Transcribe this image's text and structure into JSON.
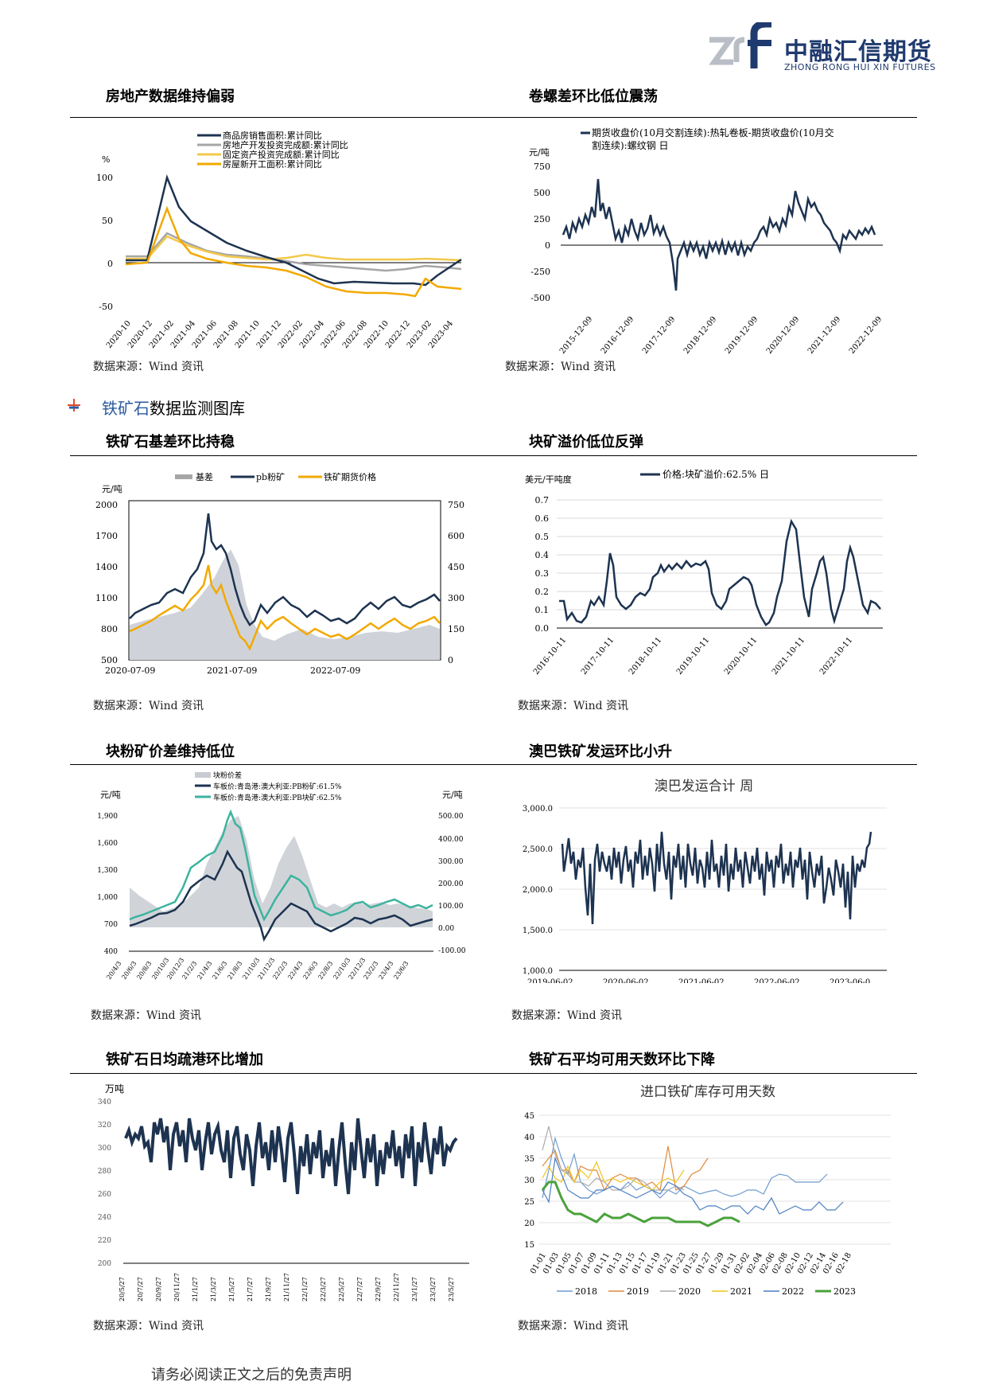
{
  "header": {
    "logo_cn": "中融汇信期货",
    "logo_en": "ZHONG RONG HUI XIN FUTURES"
  },
  "section_title_blue": "铁矿石",
  "section_title_rest": "数据监测图库",
  "source_text": "数据来源：Wind 资讯",
  "footer": "请务必阅读正文之后的免责声明",
  "colors": {
    "navy": "#1d3350",
    "gray": "#a6a6a6",
    "gold": "#f2a900",
    "orange": "#e07b00",
    "teal": "#3db39e",
    "accent": "#2c5aa0"
  },
  "charts": {
    "c1": {
      "title": "房地产数据维持偏弱",
      "unit": "%",
      "legend": [
        "商品房销售面积:累计同比",
        "房地产开发投资完成额:累计同比",
        "固定资产投资完成额:累计同比",
        "房屋新开工面积:累计同比"
      ],
      "yticks": [
        "100",
        "50",
        "0",
        "-50"
      ],
      "xticks": [
        "2020-10",
        "2020-12",
        "2021-02",
        "2021-04",
        "2021-06",
        "2021-08",
        "2021-10",
        "2021-12",
        "2022-02",
        "2022-04",
        "2022-06",
        "2022-08",
        "2022-10",
        "2022-12",
        "2023-02",
        "2023-04"
      ]
    },
    "c2": {
      "title": "卷螺差环比低位震荡",
      "unit": "元/吨",
      "legend": [
        "期货收盘价(10月交割连续):热轧卷板-期货收盘价(10月交",
        "割连续):螺纹钢 日"
      ],
      "yticks": [
        "750",
        "500",
        "250",
        "0",
        "-250",
        "-500"
      ],
      "xticks": [
        "2015-12-09",
        "2016-12-09",
        "2017-12-09",
        "2018-12-09",
        "2019-12-09",
        "2020-12-09",
        "2021-12-09",
        "2022-12-09"
      ]
    },
    "c3": {
      "title": "铁矿石基差环比持稳",
      "unit": "元/吨",
      "legend": [
        "基差",
        "pb粉矿",
        "铁矿期货价格"
      ],
      "yticks_left": [
        "2000",
        "1700",
        "1400",
        "1100",
        "800",
        "500"
      ],
      "yticks_right": [
        "750",
        "600",
        "450",
        "300",
        "150",
        "0"
      ],
      "xticks": [
        "2020-07-09",
        "2021-07-09",
        "2022-07-09"
      ]
    },
    "c4": {
      "title": "块矿溢价低位反弹",
      "unit": "美元/干吨度",
      "legend": [
        "价格:块矿溢价:62.5% 日"
      ],
      "yticks": [
        "0.7",
        "0.6",
        "0.5",
        "0.4",
        "0.3",
        "0.2",
        "0.1",
        "0.0"
      ],
      "xticks": [
        "2016-10-11",
        "2017-10-11",
        "2018-10-11",
        "2019-10-11",
        "2020-10-11",
        "2021-10-11",
        "2022-10-11"
      ]
    },
    "c5": {
      "title": "块粉矿价差维持低位",
      "unit_left": "元/吨",
      "unit_right": "元/吨",
      "legend": [
        "块粉价差",
        "车板价:青岛港:澳大利亚:PB粉矿:61.5%",
        "车板价:青岛港:澳大利亚:PB块矿:62.5%"
      ],
      "yticks_left": [
        "1,900",
        "1,600",
        "1,300",
        "1,000",
        "700",
        "400"
      ],
      "yticks_right": [
        "500.00",
        "400.00",
        "300.00",
        "200.00",
        "100.00",
        "0.00",
        "-100.00"
      ],
      "xticks": [
        "20/4/3",
        "20/6/3",
        "20/8/3",
        "20/10/3",
        "20/12/3",
        "21/2/3",
        "21/4/3",
        "21/6/3",
        "21/8/3",
        "21/10/3",
        "21/12/3",
        "22/2/3",
        "22/4/3",
        "22/6/3",
        "22/8/3",
        "22/10/3",
        "22/12/3",
        "23/2/3",
        "23/4/3",
        "23/6/3"
      ]
    },
    "c6": {
      "title": "澳巴铁矿发运环比小升",
      "inner_title": "澳巴发运合计 周",
      "yticks": [
        "3,000.0",
        "2,500.0",
        "2,000.0",
        "1,500.0",
        "1,000.0"
      ],
      "xticks": [
        "2019-06-02",
        "2020-06-02",
        "2021-06-02",
        "2022-06-02",
        "2023-06-0"
      ]
    },
    "c7": {
      "title": "铁矿石日均疏港环比增加",
      "unit": "万吨",
      "yticks": [
        "340",
        "320",
        "300",
        "280",
        "260",
        "240",
        "220",
        "200"
      ],
      "xticks": [
        "20/5/27",
        "20/7/27",
        "20/9/27",
        "20/11/27",
        "21/1/27",
        "21/3/27",
        "21/5/27",
        "21/7/27",
        "21/9/27",
        "21/11/27",
        "22/1/27",
        "22/3/27",
        "22/5/27",
        "22/7/27",
        "22/9/27",
        "22/11/27",
        "23/1/27",
        "23/3/27",
        "23/5/27"
      ]
    },
    "c8": {
      "title": "铁矿石平均可用天数环比下降",
      "inner_title": "进口铁矿库存可用天数",
      "yticks": [
        "45",
        "40",
        "35",
        "30",
        "25",
        "20",
        "15"
      ],
      "xticks": [
        "01-01",
        "01-03",
        "01-05",
        "01-07",
        "01-09",
        "01-11",
        "01-13",
        "01-15",
        "01-17",
        "01-19",
        "01-21",
        "01-23",
        "01-25",
        "01-27",
        "01-29",
        "01-31",
        "02-02",
        "02-04",
        "02-06",
        "02-08",
        "02-10",
        "02-12",
        "02-14",
        "02-16",
        "02-18"
      ],
      "legend": [
        "2018",
        "2019",
        "2020",
        "2021",
        "2022",
        "2023"
      ]
    }
  }
}
